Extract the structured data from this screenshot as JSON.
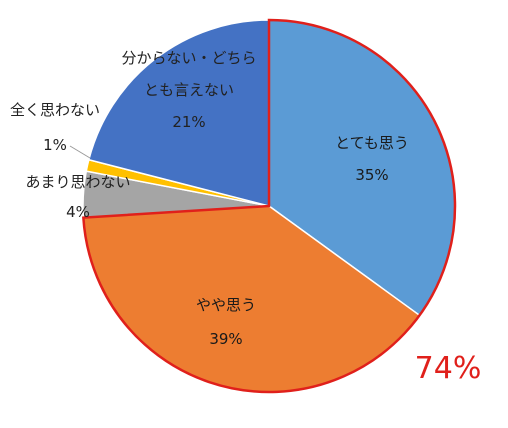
{
  "chart_data": {
    "type": "pie",
    "title": "",
    "slices": [
      {
        "name": "とても思う",
        "value": 35,
        "label": "35%",
        "color": "#5b9bd5"
      },
      {
        "name": "やや思う",
        "value": 39,
        "label": "39%",
        "color": "#ed7d31"
      },
      {
        "name": "あまり思わない",
        "value": 4,
        "label": "4%",
        "color": "#a5a5a5"
      },
      {
        "name": "全く思わない",
        "value": 1,
        "label": "1%",
        "color": "#ffc000"
      },
      {
        "name": "分からない・どちらとも言えない",
        "name_lines": [
          "分からない・どちら",
          "とも言えない"
        ],
        "value": 21,
        "label": "21%",
        "color": "#4472c4"
      }
    ],
    "highlight": {
      "text": "74%",
      "color": "#e0201b",
      "covers": [
        "とても思う",
        "やや思う"
      ]
    }
  }
}
